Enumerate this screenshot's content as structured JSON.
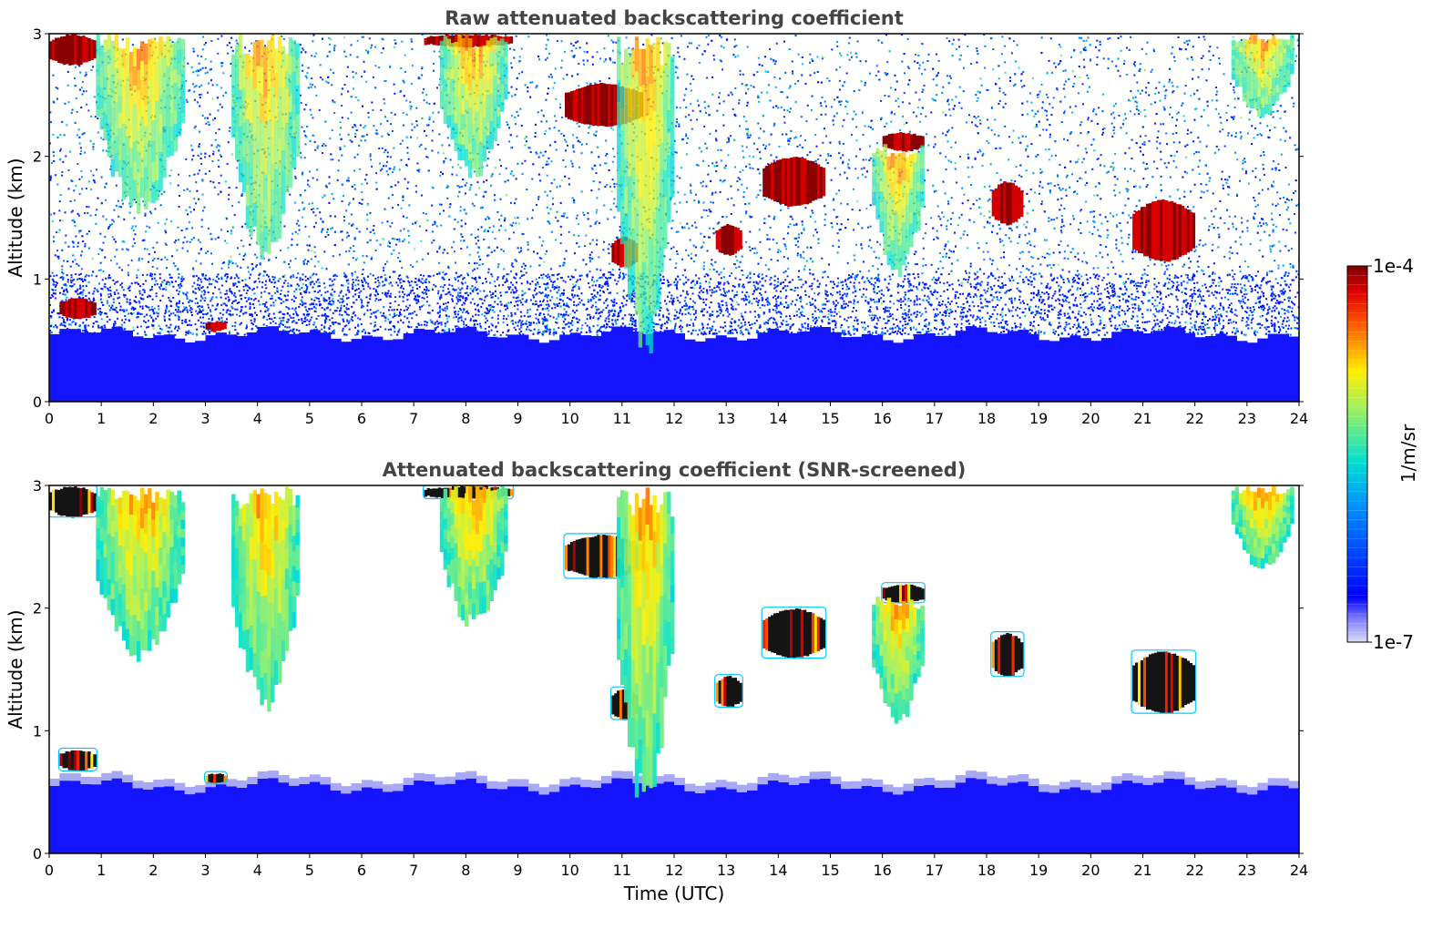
{
  "chart_data": [
    {
      "type": "heatmap",
      "title": "Raw attenuated backscattering coefficient",
      "xlabel": "",
      "ylabel": "Altitude (km)",
      "xlim": [
        0,
        24
      ],
      "ylim": [
        0,
        3
      ],
      "x_ticks": [
        "0",
        "1",
        "2",
        "3",
        "4",
        "5",
        "6",
        "7",
        "8",
        "9",
        "10",
        "11",
        "12",
        "13",
        "14",
        "15",
        "16",
        "17",
        "18",
        "19",
        "20",
        "21",
        "22",
        "23",
        "24"
      ],
      "y_ticks": [
        "0",
        "1",
        "2",
        "3"
      ],
      "boundary_layer_top_km": 0.55,
      "noise": "heavy noise speckle at all altitudes",
      "features": [
        {
          "kind": "liquid-cloud",
          "t": [
            0.0,
            0.9
          ],
          "z": [
            2.75,
            3.0
          ]
        },
        {
          "kind": "liquid-cloud",
          "t": [
            0.2,
            0.9
          ],
          "z": [
            0.68,
            0.85
          ]
        },
        {
          "kind": "liquid-cloud",
          "t": [
            3.0,
            3.4
          ],
          "z": [
            0.58,
            0.66
          ]
        },
        {
          "kind": "liquid-cloud",
          "t": [
            7.2,
            8.9
          ],
          "z": [
            2.9,
            3.0
          ]
        },
        {
          "kind": "liquid-cloud",
          "t": [
            9.9,
            11.4
          ],
          "z": [
            2.25,
            2.6
          ]
        },
        {
          "kind": "liquid-cloud",
          "t": [
            10.8,
            11.3
          ],
          "z": [
            1.1,
            1.35
          ]
        },
        {
          "kind": "liquid-cloud",
          "t": [
            12.8,
            13.3
          ],
          "z": [
            1.2,
            1.45
          ]
        },
        {
          "kind": "liquid-cloud",
          "t": [
            13.7,
            14.9
          ],
          "z": [
            1.6,
            2.0
          ]
        },
        {
          "kind": "liquid-cloud",
          "t": [
            16.0,
            16.8
          ],
          "z": [
            2.05,
            2.2
          ]
        },
        {
          "kind": "liquid-cloud",
          "t": [
            18.1,
            18.7
          ],
          "z": [
            1.45,
            1.8
          ]
        },
        {
          "kind": "liquid-cloud",
          "t": [
            20.8,
            22.0
          ],
          "z": [
            1.15,
            1.65
          ]
        },
        {
          "kind": "aerosol-plume",
          "t": [
            0.9,
            2.6
          ],
          "z": [
            1.5,
            3.0
          ]
        },
        {
          "kind": "aerosol-plume",
          "t": [
            3.5,
            4.8
          ],
          "z": [
            1.1,
            3.0
          ]
        },
        {
          "kind": "aerosol-plume",
          "t": [
            7.5,
            8.8
          ],
          "z": [
            1.8,
            3.0
          ]
        },
        {
          "kind": "aerosol-plume",
          "t": [
            10.9,
            12.0
          ],
          "z": [
            0.3,
            3.0
          ]
        },
        {
          "kind": "aerosol-plume",
          "t": [
            15.8,
            16.8
          ],
          "z": [
            1.0,
            2.1
          ]
        },
        {
          "kind": "aerosol-plume",
          "t": [
            22.7,
            23.9
          ],
          "z": [
            2.3,
            3.0
          ]
        }
      ]
    },
    {
      "type": "heatmap",
      "title": "Attenuated backscattering coefficient (SNR-screened)",
      "xlabel": "Time (UTC)",
      "ylabel": "Altitude (km)",
      "xlim": [
        0,
        24
      ],
      "ylim": [
        0,
        3
      ],
      "x_ticks": [
        "0",
        "1",
        "2",
        "3",
        "4",
        "5",
        "6",
        "7",
        "8",
        "9",
        "10",
        "11",
        "12",
        "13",
        "14",
        "15",
        "16",
        "17",
        "18",
        "19",
        "20",
        "21",
        "22",
        "23",
        "24"
      ],
      "y_ticks": [
        "0",
        "1",
        "2",
        "3"
      ],
      "boundary_layer_top_km": 0.55,
      "noise": "screened out (white)",
      "features": [
        {
          "kind": "liquid-cloud",
          "t": [
            0.0,
            0.9
          ],
          "z": [
            2.75,
            3.0
          ]
        },
        {
          "kind": "liquid-cloud",
          "t": [
            0.2,
            0.9
          ],
          "z": [
            0.68,
            0.85
          ]
        },
        {
          "kind": "liquid-cloud",
          "t": [
            3.0,
            3.4
          ],
          "z": [
            0.58,
            0.66
          ]
        },
        {
          "kind": "liquid-cloud",
          "t": [
            7.2,
            8.9
          ],
          "z": [
            2.9,
            3.0
          ]
        },
        {
          "kind": "liquid-cloud",
          "t": [
            9.9,
            11.4
          ],
          "z": [
            2.25,
            2.6
          ]
        },
        {
          "kind": "liquid-cloud",
          "t": [
            10.8,
            11.3
          ],
          "z": [
            1.1,
            1.35
          ]
        },
        {
          "kind": "liquid-cloud",
          "t": [
            12.8,
            13.3
          ],
          "z": [
            1.2,
            1.45
          ]
        },
        {
          "kind": "liquid-cloud",
          "t": [
            13.7,
            14.9
          ],
          "z": [
            1.6,
            2.0
          ]
        },
        {
          "kind": "liquid-cloud",
          "t": [
            16.0,
            16.8
          ],
          "z": [
            2.05,
            2.2
          ]
        },
        {
          "kind": "liquid-cloud",
          "t": [
            18.1,
            18.7
          ],
          "z": [
            1.45,
            1.8
          ]
        },
        {
          "kind": "liquid-cloud",
          "t": [
            20.8,
            22.0
          ],
          "z": [
            1.15,
            1.65
          ]
        },
        {
          "kind": "aerosol-plume",
          "t": [
            0.9,
            2.6
          ],
          "z": [
            1.5,
            3.0
          ]
        },
        {
          "kind": "aerosol-plume",
          "t": [
            3.5,
            4.8
          ],
          "z": [
            1.1,
            3.0
          ]
        },
        {
          "kind": "aerosol-plume",
          "t": [
            7.5,
            8.8
          ],
          "z": [
            1.8,
            3.0
          ]
        },
        {
          "kind": "aerosol-plume",
          "t": [
            10.9,
            12.0
          ],
          "z": [
            0.3,
            3.0
          ]
        },
        {
          "kind": "aerosol-plume",
          "t": [
            15.8,
            16.8
          ],
          "z": [
            1.0,
            2.1
          ]
        },
        {
          "kind": "aerosol-plume",
          "t": [
            22.7,
            23.9
          ],
          "z": [
            2.3,
            3.0
          ]
        }
      ]
    }
  ],
  "colorbar": {
    "label": "1/m/sr",
    "max_label": "1e-4",
    "min_label": "1e-7",
    "colormap": "jet",
    "scale": "log"
  },
  "colors": {
    "title": "#444444",
    "axis": "#000000",
    "background": "#ffffff"
  }
}
